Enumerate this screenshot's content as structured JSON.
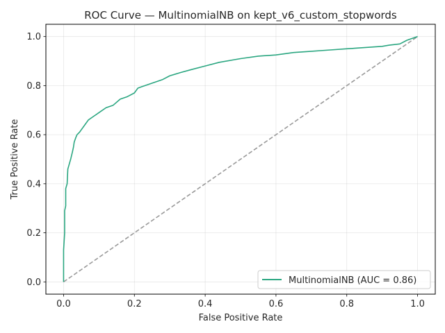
{
  "chart_data": {
    "type": "line",
    "title": "ROC Curve — MultinomialNB on kept_v6_custom_stopwords",
    "xlabel": "False Positive Rate",
    "ylabel": "True Positive Rate",
    "xlim": [
      -0.05,
      1.05
    ],
    "ylim": [
      -0.05,
      1.05
    ],
    "xticks": [
      0.0,
      0.2,
      0.4,
      0.6,
      0.8,
      1.0
    ],
    "yticks": [
      0.0,
      0.2,
      0.4,
      0.6,
      0.8,
      1.0
    ],
    "xtick_labels": [
      "0.0",
      "0.2",
      "0.4",
      "0.6",
      "0.8",
      "1.0"
    ],
    "ytick_labels": [
      "0.0",
      "0.2",
      "0.4",
      "0.6",
      "0.8",
      "1.0"
    ],
    "grid": true,
    "legend_position": "lower-right",
    "series": [
      {
        "name": "MultinomialNB (AUC = 0.86)",
        "color": "#2aa680",
        "style": "solid",
        "x": [
          0.0,
          0.0,
          0.003,
          0.003,
          0.006,
          0.006,
          0.01,
          0.012,
          0.016,
          0.02,
          0.025,
          0.028,
          0.03,
          0.035,
          0.038,
          0.045,
          0.05,
          0.06,
          0.07,
          0.08,
          0.09,
          0.1,
          0.12,
          0.14,
          0.16,
          0.18,
          0.2,
          0.21,
          0.22,
          0.25,
          0.28,
          0.3,
          0.33,
          0.36,
          0.4,
          0.44,
          0.5,
          0.55,
          0.6,
          0.65,
          0.7,
          0.75,
          0.8,
          0.85,
          0.9,
          0.92,
          0.95,
          0.97,
          1.0
        ],
        "y": [
          0.0,
          0.13,
          0.2,
          0.29,
          0.31,
          0.38,
          0.4,
          0.46,
          0.48,
          0.5,
          0.53,
          0.55,
          0.57,
          0.59,
          0.6,
          0.61,
          0.62,
          0.64,
          0.66,
          0.67,
          0.68,
          0.69,
          0.71,
          0.72,
          0.745,
          0.755,
          0.77,
          0.79,
          0.795,
          0.81,
          0.825,
          0.84,
          0.853,
          0.865,
          0.88,
          0.895,
          0.91,
          0.92,
          0.925,
          0.935,
          0.94,
          0.945,
          0.95,
          0.955,
          0.96,
          0.965,
          0.97,
          0.985,
          1.0
        ]
      },
      {
        "name": "",
        "color": "#999999",
        "style": "dashed",
        "x": [
          0.0,
          1.0
        ],
        "y": [
          0.0,
          1.0
        ]
      }
    ],
    "legend": [
      "MultinomialNB (AUC = 0.86)"
    ]
  }
}
